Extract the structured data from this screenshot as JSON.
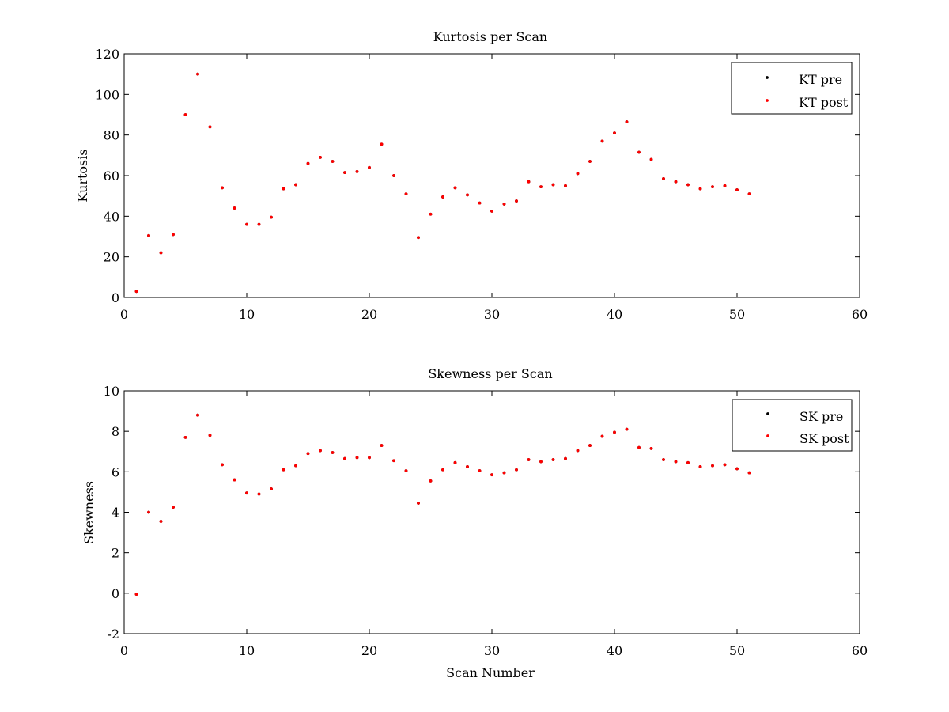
{
  "chart_data": [
    {
      "type": "scatter",
      "title": "Kurtosis per Scan",
      "xlabel": "",
      "ylabel": "Kurtosis",
      "xlim": [
        0,
        60
      ],
      "ylim": [
        0,
        120
      ],
      "xticks": [
        0,
        10,
        20,
        30,
        40,
        50,
        60
      ],
      "yticks": [
        0,
        20,
        40,
        60,
        80,
        100,
        120
      ],
      "grid": false,
      "legend": "top-right",
      "x": [
        1,
        2,
        3,
        4,
        5,
        6,
        7,
        8,
        9,
        10,
        11,
        12,
        13,
        14,
        15,
        16,
        17,
        18,
        19,
        20,
        21,
        22,
        23,
        24,
        25,
        26,
        27,
        28,
        29,
        30,
        31,
        32,
        33,
        34,
        35,
        36,
        37,
        38,
        39,
        40,
        41,
        42,
        43,
        44,
        45,
        46,
        47,
        48,
        49,
        50,
        51
      ],
      "series": [
        {
          "name": "KT pre",
          "color": "#000000",
          "values": [
            3,
            30.5,
            22,
            31,
            90,
            110,
            84,
            54,
            44,
            36,
            36,
            39.5,
            53.5,
            55.5,
            66,
            69,
            67,
            61.5,
            62,
            64,
            75.5,
            60,
            51,
            29.5,
            41,
            49.5,
            54,
            50.5,
            46.5,
            42.5,
            46,
            47.5,
            57,
            54.5,
            55.5,
            55,
            61,
            67,
            77,
            81,
            86.5,
            71.5,
            68,
            58.5,
            57,
            55.5,
            53.5,
            54.5,
            55,
            53,
            51
          ]
        },
        {
          "name": "KT post",
          "color": "#ff0000",
          "values": [
            3,
            30.5,
            22,
            31,
            90,
            110,
            84,
            54,
            44,
            36,
            36,
            39.5,
            53.5,
            55.5,
            66,
            69,
            67,
            61.5,
            62,
            64,
            75.5,
            60,
            51,
            29.5,
            41,
            49.5,
            54,
            50.5,
            46.5,
            42.5,
            46,
            47.5,
            57,
            54.5,
            55.5,
            55,
            61,
            67,
            77,
            81,
            86.5,
            71.5,
            68,
            58.5,
            57,
            55.5,
            53.5,
            54.5,
            55,
            53,
            51
          ]
        }
      ]
    },
    {
      "type": "scatter",
      "title": "Skewness per Scan",
      "xlabel": "Scan Number",
      "ylabel": "Skewness",
      "xlim": [
        0,
        60
      ],
      "ylim": [
        -2,
        10
      ],
      "xticks": [
        0,
        10,
        20,
        30,
        40,
        50,
        60
      ],
      "yticks": [
        -2,
        0,
        2,
        4,
        6,
        8,
        10
      ],
      "grid": false,
      "legend": "top-right",
      "x": [
        1,
        2,
        3,
        4,
        5,
        6,
        7,
        8,
        9,
        10,
        11,
        12,
        13,
        14,
        15,
        16,
        17,
        18,
        19,
        20,
        21,
        22,
        23,
        24,
        25,
        26,
        27,
        28,
        29,
        30,
        31,
        32,
        33,
        34,
        35,
        36,
        37,
        38,
        39,
        40,
        41,
        42,
        43,
        44,
        45,
        46,
        47,
        48,
        49,
        50,
        51
      ],
      "series": [
        {
          "name": "SK pre",
          "color": "#000000",
          "values": [
            -0.05,
            4,
            3.55,
            4.25,
            7.7,
            8.8,
            7.8,
            6.35,
            5.6,
            4.95,
            4.9,
            5.15,
            6.1,
            6.3,
            6.9,
            7.05,
            6.95,
            6.65,
            6.7,
            6.7,
            7.3,
            6.55,
            6.05,
            4.45,
            5.55,
            6.1,
            6.45,
            6.25,
            6.05,
            5.85,
            5.95,
            6.1,
            6.6,
            6.5,
            6.6,
            6.65,
            7.05,
            7.3,
            7.75,
            7.95,
            8.1,
            7.2,
            7.15,
            6.6,
            6.5,
            6.45,
            6.25,
            6.3,
            6.35,
            6.15,
            5.95
          ]
        },
        {
          "name": "SK post",
          "color": "#ff0000",
          "values": [
            -0.05,
            4,
            3.55,
            4.25,
            7.7,
            8.8,
            7.8,
            6.35,
            5.6,
            4.95,
            4.9,
            5.15,
            6.1,
            6.3,
            6.9,
            7.05,
            6.95,
            6.65,
            6.7,
            6.7,
            7.3,
            6.55,
            6.05,
            4.45,
            5.55,
            6.1,
            6.45,
            6.25,
            6.05,
            5.85,
            5.95,
            6.1,
            6.6,
            6.5,
            6.6,
            6.65,
            7.05,
            7.3,
            7.75,
            7.95,
            8.1,
            7.2,
            7.15,
            6.6,
            6.5,
            6.45,
            6.25,
            6.3,
            6.35,
            6.15,
            5.95
          ]
        }
      ]
    }
  ]
}
